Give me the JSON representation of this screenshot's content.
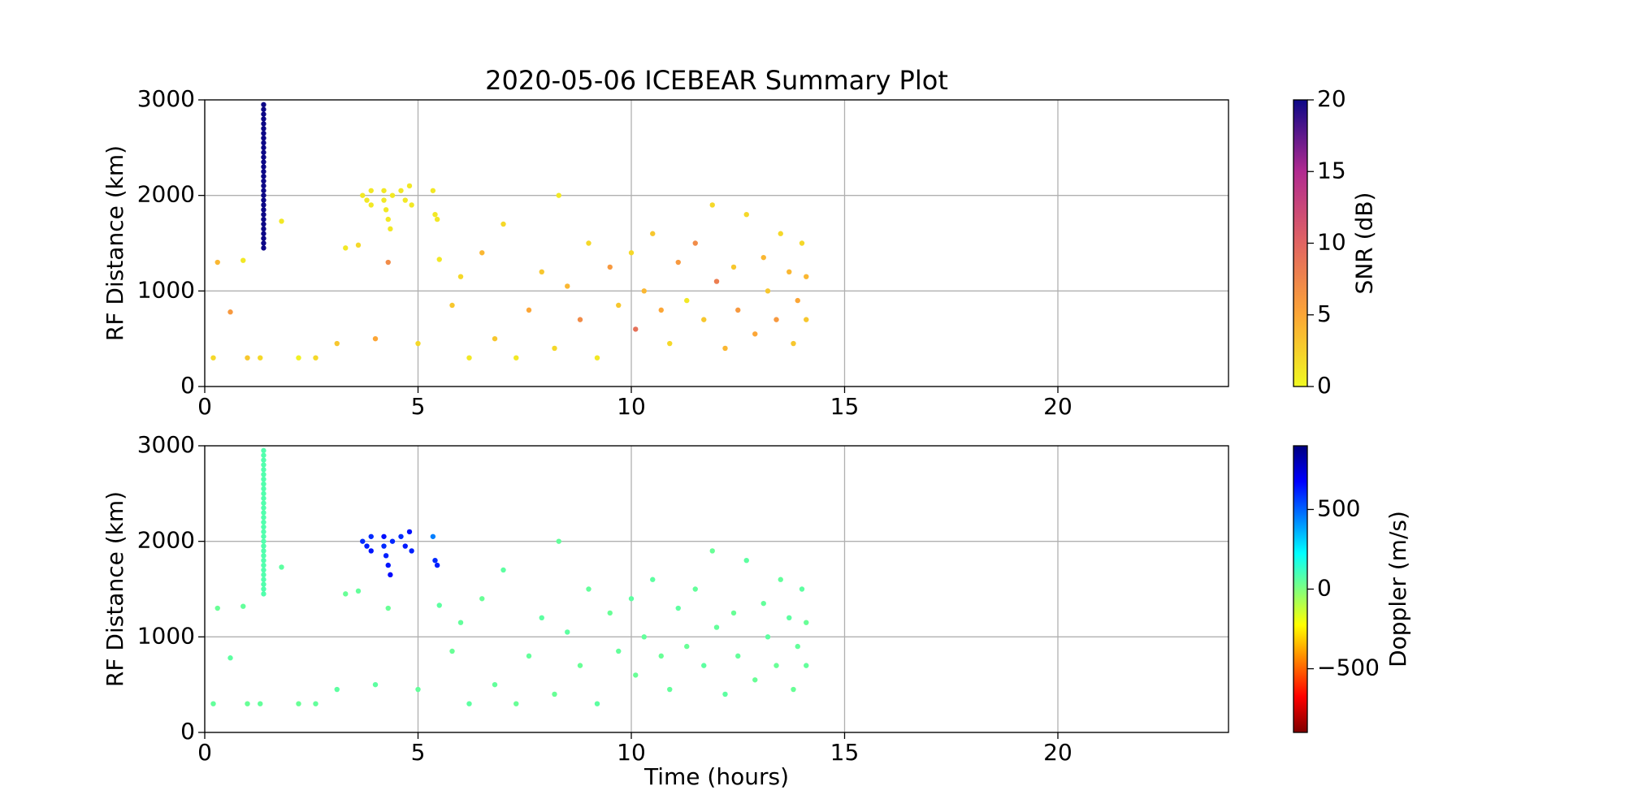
{
  "chart_data": [
    {
      "type": "scatter",
      "title": "2020-05-06 ICEBEAR Summary Plot",
      "ylabel": "RF Distance (km)",
      "xlim": [
        0,
        24
      ],
      "xticks": [
        0,
        5,
        10,
        15,
        20
      ],
      "ylim": [
        0,
        3000
      ],
      "yticks": [
        0,
        1000,
        2000,
        3000
      ],
      "grid": true,
      "x": [
        1.38,
        1.38,
        1.38,
        1.38,
        1.38,
        1.38,
        1.38,
        1.38,
        1.38,
        1.38,
        1.38,
        1.38,
        1.38,
        1.38,
        1.38,
        1.38,
        1.38,
        1.38,
        1.38,
        1.38,
        1.38,
        1.38,
        1.38,
        1.38,
        1.38,
        1.38,
        1.38,
        1.38,
        1.38,
        1.38,
        1.38,
        3.7,
        3.8,
        3.9,
        3.9,
        4.2,
        4.2,
        4.25,
        4.3,
        4.35,
        4.4,
        4.6,
        4.7,
        4.8,
        4.85,
        5.35,
        5.4,
        5.45,
        0.2,
        0.3,
        0.6,
        0.9,
        1.0,
        1.3,
        1.8,
        2.2,
        2.6,
        3.1,
        3.3,
        3.6,
        4.0,
        4.3,
        5.0,
        5.5,
        5.8,
        6.0,
        6.2,
        6.5,
        6.8,
        7.0,
        7.3,
        7.6,
        7.9,
        8.2,
        8.3,
        8.5,
        8.8,
        9.0,
        9.2,
        9.5,
        9.7,
        10.0,
        10.1,
        10.3,
        10.5,
        10.7,
        10.9,
        11.1,
        11.3,
        11.5,
        11.7,
        11.9,
        12.0,
        12.2,
        12.4,
        12.5,
        12.7,
        12.9,
        13.1,
        13.2,
        13.4,
        13.5,
        13.7,
        13.8,
        13.9,
        14.0,
        14.1,
        14.1
      ],
      "values": [
        1450,
        1500,
        1550,
        1600,
        1650,
        1700,
        1750,
        1800,
        1850,
        1900,
        1950,
        2000,
        2050,
        2100,
        2150,
        2200,
        2250,
        2300,
        2350,
        2400,
        2450,
        2500,
        2550,
        2600,
        2650,
        2700,
        2750,
        2800,
        2850,
        2900,
        2950,
        2000,
        1950,
        2050,
        1900,
        2050,
        1950,
        1850,
        1750,
        1650,
        2000,
        2050,
        1950,
        2100,
        1900,
        2050,
        1800,
        1750,
        300,
        1300,
        780,
        1320,
        300,
        300,
        1730,
        300,
        300,
        450,
        1450,
        1480,
        500,
        1300,
        450,
        1330,
        850,
        1150,
        300,
        1400,
        500,
        1700,
        300,
        800,
        1200,
        400,
        2000,
        1050,
        700,
        1500,
        300,
        1250,
        850,
        1400,
        600,
        1000,
        1600,
        800,
        450,
        1300,
        900,
        1500,
        700,
        1900,
        1100,
        400,
        1250,
        800,
        1800,
        550,
        1350,
        1000,
        700,
        1600,
        1200,
        450,
        900,
        1500,
        1150,
        700
      ],
      "color_values": [
        20,
        20,
        20,
        20,
        20,
        20,
        20,
        20,
        20,
        20,
        20,
        20,
        20,
        20,
        20,
        20,
        20,
        20,
        20,
        20,
        20,
        20,
        20,
        20,
        20,
        20,
        20,
        20,
        20,
        20,
        20,
        1,
        1,
        1,
        1,
        1,
        1,
        1,
        1,
        1,
        1,
        1,
        1,
        1,
        1,
        1,
        1,
        1,
        2,
        4,
        6,
        1,
        3,
        2,
        1,
        0.5,
        2,
        3,
        1,
        2,
        5,
        7,
        2,
        1,
        3,
        2,
        1,
        4,
        3,
        2,
        1,
        5,
        3,
        2,
        1,
        4,
        7,
        2,
        1,
        6,
        3,
        2,
        9,
        4,
        3,
        5,
        2,
        6,
        1,
        7,
        3,
        2,
        8,
        4,
        3,
        6,
        2,
        5,
        4,
        3,
        6,
        2,
        4,
        3,
        5,
        2,
        4,
        3
      ],
      "colorbar": {
        "label": "SNR (dB)",
        "lim": [
          0,
          20
        ],
        "ticks": [
          0,
          5,
          10,
          15,
          20
        ],
        "colormap": [
          "#f0f921",
          "#fca636",
          "#e16462",
          "#b12a90",
          "#0d0887"
        ]
      }
    },
    {
      "type": "scatter",
      "ylabel": "RF Distance (km)",
      "xlabel": "Time (hours)",
      "xlim": [
        0,
        24
      ],
      "xticks": [
        0,
        5,
        10,
        15,
        20
      ],
      "ylim": [
        0,
        3000
      ],
      "yticks": [
        0,
        1000,
        2000,
        3000
      ],
      "grid": true,
      "x": [
        1.38,
        1.38,
        1.38,
        1.38,
        1.38,
        1.38,
        1.38,
        1.38,
        1.38,
        1.38,
        1.38,
        1.38,
        1.38,
        1.38,
        1.38,
        1.38,
        1.38,
        1.38,
        1.38,
        1.38,
        1.38,
        1.38,
        1.38,
        1.38,
        1.38,
        1.38,
        1.38,
        1.38,
        1.38,
        1.38,
        1.38,
        3.7,
        3.8,
        3.9,
        3.9,
        4.2,
        4.2,
        4.25,
        4.3,
        4.35,
        4.4,
        4.6,
        4.7,
        4.8,
        4.85,
        5.35,
        5.4,
        5.45,
        0.2,
        0.3,
        0.6,
        0.9,
        1.0,
        1.3,
        1.8,
        2.2,
        2.6,
        3.1,
        3.3,
        3.6,
        4.0,
        4.3,
        5.0,
        5.5,
        5.8,
        6.0,
        6.2,
        6.5,
        6.8,
        7.0,
        7.3,
        7.6,
        7.9,
        8.2,
        8.3,
        8.5,
        8.8,
        9.0,
        9.2,
        9.5,
        9.7,
        10.0,
        10.1,
        10.3,
        10.5,
        10.7,
        10.9,
        11.1,
        11.3,
        11.5,
        11.7,
        11.9,
        12.0,
        12.2,
        12.4,
        12.5,
        12.7,
        12.9,
        13.1,
        13.2,
        13.4,
        13.5,
        13.7,
        13.8,
        13.9,
        14.0,
        14.1,
        14.1
      ],
      "values": [
        1450,
        1500,
        1550,
        1600,
        1650,
        1700,
        1750,
        1800,
        1850,
        1900,
        1950,
        2000,
        2050,
        2100,
        2150,
        2200,
        2250,
        2300,
        2350,
        2400,
        2450,
        2500,
        2550,
        2600,
        2650,
        2700,
        2750,
        2800,
        2850,
        2900,
        2950,
        2000,
        1950,
        2050,
        1900,
        2050,
        1950,
        1850,
        1750,
        1650,
        2000,
        2050,
        1950,
        2100,
        1900,
        2050,
        1800,
        1750,
        300,
        1300,
        780,
        1320,
        300,
        300,
        1730,
        300,
        300,
        450,
        1450,
        1480,
        500,
        1300,
        450,
        1330,
        850,
        1150,
        300,
        1400,
        500,
        1700,
        300,
        800,
        1200,
        400,
        2000,
        1050,
        700,
        1500,
        300,
        1250,
        850,
        1400,
        600,
        1000,
        1600,
        800,
        450,
        1300,
        900,
        1500,
        700,
        1900,
        1100,
        400,
        1250,
        800,
        1800,
        550,
        1350,
        1000,
        700,
        1600,
        1200,
        450,
        900,
        1500,
        1150,
        700
      ],
      "color_values": [
        80,
        80,
        80,
        80,
        80,
        80,
        80,
        80,
        80,
        80,
        80,
        80,
        80,
        80,
        80,
        80,
        80,
        80,
        80,
        80,
        80,
        80,
        80,
        80,
        80,
        80,
        80,
        80,
        80,
        80,
        80,
        600,
        620,
        600,
        640,
        650,
        600,
        620,
        640,
        660,
        610,
        600,
        630,
        650,
        620,
        450,
        600,
        620,
        50,
        40,
        60,
        50,
        40,
        50,
        60,
        40,
        50,
        60,
        40,
        50,
        60,
        40,
        50,
        60,
        40,
        50,
        60,
        40,
        50,
        60,
        40,
        50,
        60,
        40,
        50,
        60,
        40,
        50,
        60,
        40,
        50,
        60,
        40,
        50,
        60,
        40,
        50,
        60,
        40,
        50,
        60,
        40,
        50,
        60,
        40,
        50,
        60,
        40,
        50,
        60,
        40,
        50,
        60,
        40,
        50,
        60,
        40,
        50
      ],
      "colorbar": {
        "label": "Doppler (m/s)",
        "lim": [
          -900,
          900
        ],
        "ticks": [
          {
            "value": -500,
            "label": "−500"
          },
          0,
          500
        ],
        "colormap": [
          "#7f0000",
          "#ff0000",
          "#ff7f00",
          "#ffff00",
          "#7fff7f",
          "#00ffff",
          "#007fff",
          "#0000ff",
          "#00007f"
        ]
      }
    }
  ]
}
